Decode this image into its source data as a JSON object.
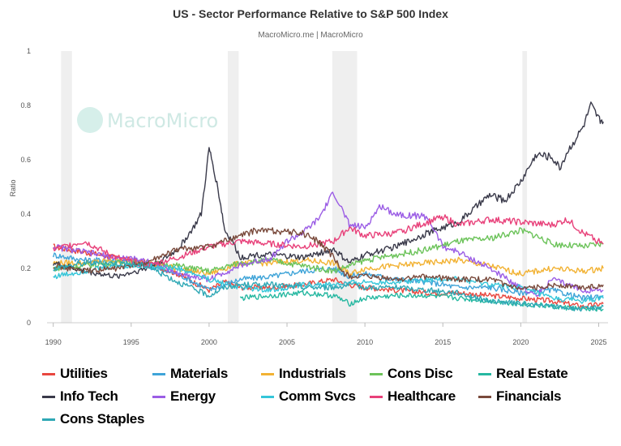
{
  "chart_data": {
    "type": "line",
    "title": "US - Sector Performance Relative to S&P 500 Index",
    "subtitle": "MacroMicro.me | MacroMicro",
    "watermark": "MacroMicro",
    "ylabel": "Ratio",
    "xlim": [
      1989.6,
      2025.6
    ],
    "ylim": [
      0,
      1
    ],
    "x_ticks": [
      "1990",
      "1995",
      "2000",
      "2005",
      "2010",
      "2015",
      "2020",
      "2025"
    ],
    "y_ticks": [
      "0",
      "0.2",
      "0.4",
      "0.6",
      "0.8",
      "1"
    ],
    "recessions": [
      [
        1990.5,
        1991.2
      ],
      [
        2001.2,
        2001.9
      ],
      [
        2007.9,
        2009.5
      ],
      [
        2020.1,
        2020.4
      ]
    ],
    "legend_position": "bottom",
    "series": [
      {
        "name": "Utilities",
        "color": "#e8473f",
        "x": [
          1990,
          1992,
          1994,
          1996,
          1998,
          2000,
          2001,
          2002,
          2004,
          2006,
          2008,
          2009,
          2010,
          2012,
          2014,
          2016,
          2018,
          2020,
          2022,
          2024,
          2025.3
        ],
        "y": [
          0.28,
          0.26,
          0.24,
          0.22,
          0.18,
          0.12,
          0.15,
          0.13,
          0.13,
          0.14,
          0.16,
          0.14,
          0.13,
          0.12,
          0.11,
          0.11,
          0.1,
          0.09,
          0.08,
          0.06,
          0.07
        ]
      },
      {
        "name": "Materials",
        "color": "#3fa4d8",
        "x": [
          1990,
          1992,
          1994,
          1996,
          1998,
          2000,
          2002,
          2004,
          2006,
          2008,
          2009,
          2010,
          2012,
          2014,
          2016,
          2018,
          2020,
          2022,
          2024,
          2025.3
        ],
        "y": [
          0.25,
          0.23,
          0.23,
          0.21,
          0.18,
          0.12,
          0.16,
          0.17,
          0.19,
          0.2,
          0.17,
          0.18,
          0.16,
          0.15,
          0.13,
          0.13,
          0.11,
          0.12,
          0.09,
          0.1
        ]
      },
      {
        "name": "Industrials",
        "color": "#f2b233",
        "x": [
          1990,
          1992,
          1994,
          1996,
          1998,
          2000,
          2002,
          2004,
          2006,
          2008,
          2009,
          2010,
          2012,
          2014,
          2016,
          2018,
          2020,
          2022,
          2024,
          2025.3
        ],
        "y": [
          0.22,
          0.22,
          0.23,
          0.22,
          0.2,
          0.18,
          0.22,
          0.22,
          0.23,
          0.22,
          0.18,
          0.2,
          0.21,
          0.22,
          0.23,
          0.21,
          0.18,
          0.2,
          0.19,
          0.2
        ]
      },
      {
        "name": "Cons Disc",
        "color": "#6cc35a",
        "x": [
          1990,
          1992,
          1994,
          1996,
          1998,
          2000,
          2002,
          2004,
          2006,
          2008,
          2009,
          2010,
          2012,
          2014,
          2016,
          2018,
          2020,
          2021,
          2022,
          2024,
          2025.3
        ],
        "y": [
          0.2,
          0.21,
          0.22,
          0.22,
          0.21,
          0.19,
          0.22,
          0.23,
          0.21,
          0.19,
          0.21,
          0.23,
          0.25,
          0.27,
          0.3,
          0.31,
          0.34,
          0.32,
          0.29,
          0.28,
          0.29
        ]
      },
      {
        "name": "Real Estate",
        "color": "#26b8a1",
        "x": [
          2002,
          2004,
          2006,
          2008,
          2009,
          2010,
          2012,
          2014,
          2016,
          2018,
          2020,
          2022,
          2024,
          2025.3
        ],
        "y": [
          0.09,
          0.1,
          0.11,
          0.1,
          0.07,
          0.09,
          0.1,
          0.1,
          0.09,
          0.08,
          0.07,
          0.06,
          0.05,
          0.05
        ]
      },
      {
        "name": "Info Tech",
        "color": "#3a3a4a",
        "x": [
          1990,
          1992,
          1994,
          1996,
          1997,
          1998,
          1999,
          1999.5,
          2000,
          2000.3,
          2000.7,
          2001,
          2001.5,
          2002,
          2003,
          2004,
          2006,
          2008,
          2009,
          2010,
          2012,
          2014,
          2016,
          2017,
          2018,
          2019,
          2020,
          2021,
          2022,
          2022.5,
          2023,
          2024,
          2024.5,
          2025,
          2025.3
        ],
        "y": [
          0.22,
          0.19,
          0.17,
          0.2,
          0.23,
          0.27,
          0.35,
          0.4,
          0.64,
          0.57,
          0.45,
          0.34,
          0.3,
          0.24,
          0.25,
          0.25,
          0.24,
          0.27,
          0.22,
          0.25,
          0.28,
          0.33,
          0.37,
          0.42,
          0.47,
          0.45,
          0.52,
          0.62,
          0.61,
          0.57,
          0.63,
          0.72,
          0.8,
          0.75,
          0.74
        ]
      },
      {
        "name": "Energy",
        "color": "#9b5de5",
        "x": [
          1990,
          1992,
          1994,
          1996,
          1998,
          2000,
          2002,
          2004,
          2005,
          2006,
          2007,
          2008,
          2008.5,
          2009,
          2010,
          2011,
          2012,
          2014,
          2015,
          2016,
          2018,
          2020,
          2021,
          2022,
          2023,
          2024,
          2025.3
        ],
        "y": [
          0.28,
          0.26,
          0.24,
          0.23,
          0.18,
          0.16,
          0.21,
          0.24,
          0.3,
          0.33,
          0.38,
          0.48,
          0.42,
          0.36,
          0.35,
          0.43,
          0.4,
          0.39,
          0.28,
          0.26,
          0.2,
          0.13,
          0.1,
          0.16,
          0.14,
          0.12,
          0.12
        ]
      },
      {
        "name": "Comm Svcs",
        "color": "#35c6d9",
        "x": [
          1990,
          1992,
          1994,
          1996,
          1998,
          2000,
          2002,
          2004,
          2006,
          2008,
          2010,
          2012,
          2014,
          2016,
          2018,
          2020,
          2022,
          2024,
          2025.3
        ],
        "y": [
          0.17,
          0.19,
          0.21,
          0.21,
          0.2,
          0.16,
          0.13,
          0.12,
          0.14,
          0.14,
          0.15,
          0.15,
          0.16,
          0.16,
          0.14,
          0.13,
          0.09,
          0.08,
          0.09
        ]
      },
      {
        "name": "Healthcare",
        "color": "#e8417a",
        "x": [
          1990,
          1992,
          1994,
          1996,
          1998,
          2000,
          2002,
          2004,
          2006,
          2008,
          2009,
          2010,
          2012,
          2014,
          2015,
          2016,
          2018,
          2020,
          2022,
          2023,
          2024,
          2025.3
        ],
        "y": [
          0.27,
          0.3,
          0.24,
          0.21,
          0.24,
          0.28,
          0.3,
          0.29,
          0.28,
          0.3,
          0.35,
          0.32,
          0.33,
          0.37,
          0.39,
          0.36,
          0.38,
          0.37,
          0.36,
          0.38,
          0.33,
          0.29
        ]
      },
      {
        "name": "Financials",
        "color": "#7a4a3c",
        "x": [
          1990,
          1992,
          1994,
          1996,
          1998,
          2000,
          2002,
          2003,
          2004,
          2006,
          2007,
          2008,
          2008.5,
          2009,
          2010,
          2012,
          2014,
          2016,
          2018,
          2020,
          2022,
          2024,
          2025.3
        ],
        "y": [
          0.21,
          0.19,
          0.2,
          0.22,
          0.27,
          0.28,
          0.32,
          0.34,
          0.34,
          0.33,
          0.3,
          0.24,
          0.19,
          0.17,
          0.17,
          0.16,
          0.17,
          0.16,
          0.16,
          0.12,
          0.14,
          0.13,
          0.14
        ]
      },
      {
        "name": "Cons Staples",
        "color": "#2fa8b5",
        "x": [
          1990,
          1992,
          1994,
          1996,
          1998,
          2000,
          2001,
          2002,
          2004,
          2006,
          2008,
          2009,
          2010,
          2012,
          2014,
          2016,
          2018,
          2020,
          2022,
          2024,
          2025.3
        ],
        "y": [
          0.2,
          0.22,
          0.22,
          0.21,
          0.15,
          0.1,
          0.13,
          0.14,
          0.14,
          0.13,
          0.13,
          0.14,
          0.13,
          0.13,
          0.12,
          0.11,
          0.08,
          0.07,
          0.06,
          0.05,
          0.06
        ]
      }
    ]
  }
}
